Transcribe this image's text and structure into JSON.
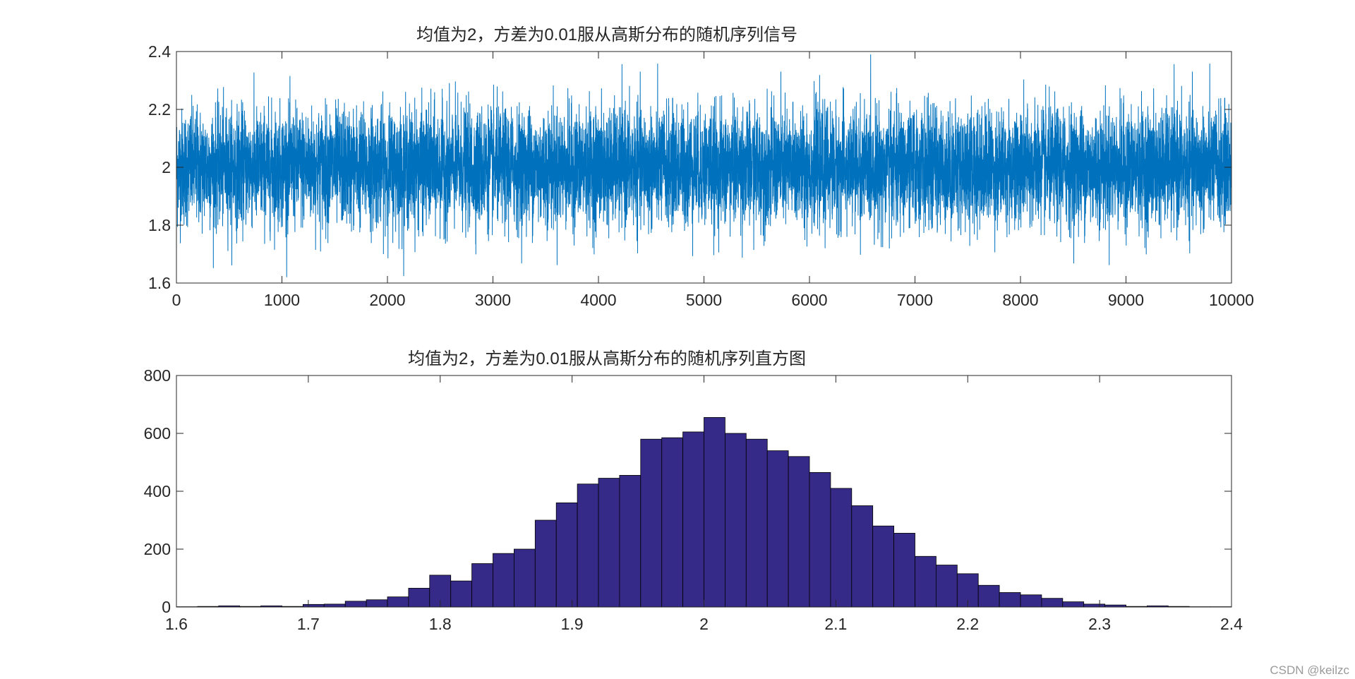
{
  "watermark": "CSDN @keilzc",
  "chart_data": [
    {
      "type": "line",
      "title": "均值为2，方差为0.01服从高斯分布的随机序列信号",
      "xlabel": "",
      "ylabel": "",
      "xlim": [
        0,
        10000
      ],
      "ylim": [
        1.6,
        2.4
      ],
      "xticks": [
        0,
        1000,
        2000,
        3000,
        4000,
        5000,
        6000,
        7000,
        8000,
        9000,
        10000
      ],
      "yticks": [
        1.6,
        1.8,
        2,
        2.2,
        2.4
      ],
      "series": [
        {
          "mean": 2,
          "variance": 0.01,
          "n": 10000,
          "color": "#0072bd",
          "approx_min": 1.62,
          "approx_max": 2.39
        }
      ],
      "grid": false
    },
    {
      "type": "bar",
      "title": "均值为2，方差为0.01服从高斯分布的随机序列直方图",
      "xlabel": "",
      "ylabel": "",
      "xlim": [
        1.6,
        2.4
      ],
      "ylim": [
        0,
        800
      ],
      "xticks": [
        1.6,
        1.7,
        1.8,
        1.9,
        2,
        2.1,
        2.2,
        2.3,
        2.4
      ],
      "yticks": [
        0,
        200,
        400,
        600,
        800
      ],
      "bin_edges": [
        1.6,
        1.616,
        1.632,
        1.648,
        1.664,
        1.68,
        1.696,
        1.712,
        1.728,
        1.744,
        1.76,
        1.776,
        1.792,
        1.808,
        1.824,
        1.84,
        1.856,
        1.872,
        1.888,
        1.904,
        1.92,
        1.936,
        1.952,
        1.968,
        1.984,
        2.0,
        2.016,
        2.032,
        2.048,
        2.064,
        2.08,
        2.096,
        2.112,
        2.128,
        2.144,
        2.16,
        2.176,
        2.192,
        2.208,
        2.224,
        2.24,
        2.256,
        2.272,
        2.288,
        2.304,
        2.32,
        2.336,
        2.352,
        2.368,
        2.384,
        2.4
      ],
      "values": [
        1,
        2,
        4,
        2,
        4,
        2,
        9,
        10,
        20,
        25,
        35,
        65,
        110,
        90,
        150,
        185,
        200,
        300,
        360,
        425,
        445,
        455,
        580,
        585,
        605,
        655,
        600,
        580,
        540,
        520,
        465,
        410,
        350,
        280,
        255,
        175,
        145,
        115,
        75,
        50,
        42,
        30,
        18,
        10,
        7,
        2,
        4,
        2,
        1,
        1
      ],
      "bar_color": "#352a87",
      "edge_color": "#000000",
      "grid": false
    }
  ]
}
